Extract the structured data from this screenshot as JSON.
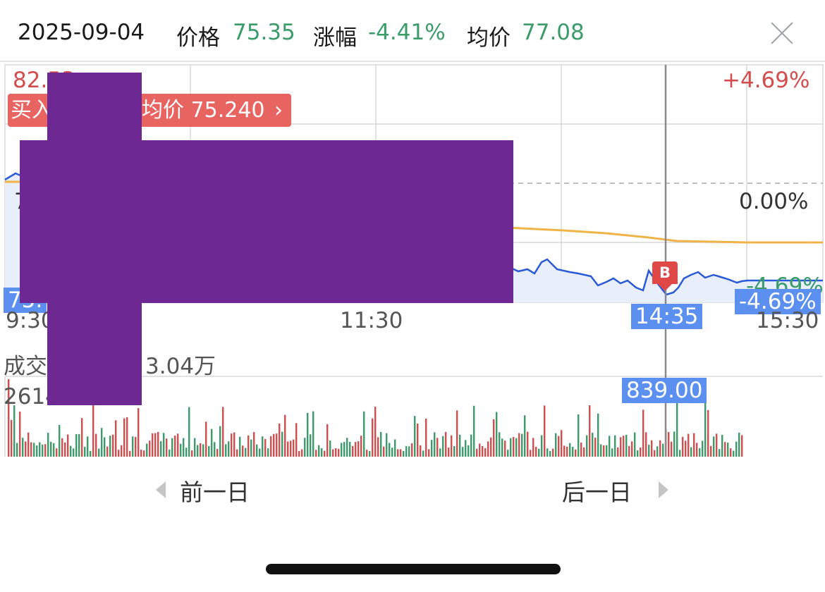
{
  "header": {
    "date": "2025-09-04",
    "price_label": "价格",
    "price_value": "75.35",
    "change_label": "涨幅",
    "change_value": "-4.41%",
    "avg_label": "均价",
    "avg_value": "77.08",
    "close_icon": "close-icon"
  },
  "chart": {
    "price_high": "82.53",
    "pct_high": "+4.69%",
    "pct_zero": "0.00%",
    "pct_low": "-4.69%",
    "price_mid_partial": "7",
    "price_low_partial": "75.",
    "buy_tag_prefix": "买入",
    "buy_tag_text": "均价 75.240",
    "buy_tag_chevron": "›",
    "marker_b": "B",
    "crosshair_time": "14:35",
    "time_start": "9:30",
    "time_mid": "11:30",
    "time_end": "15:30",
    "price_line_color": "#2a5bd7",
    "avg_line_color": "#efb347"
  },
  "volume": {
    "label_prefix": "成交",
    "label_value": "3.04万",
    "max_label": "2614",
    "crosshair_volume": "839.00",
    "up_color": "#d34d4d",
    "down_color": "#3a9d69"
  },
  "nav": {
    "prev_day": "前一日",
    "next_day": "后一日"
  }
}
